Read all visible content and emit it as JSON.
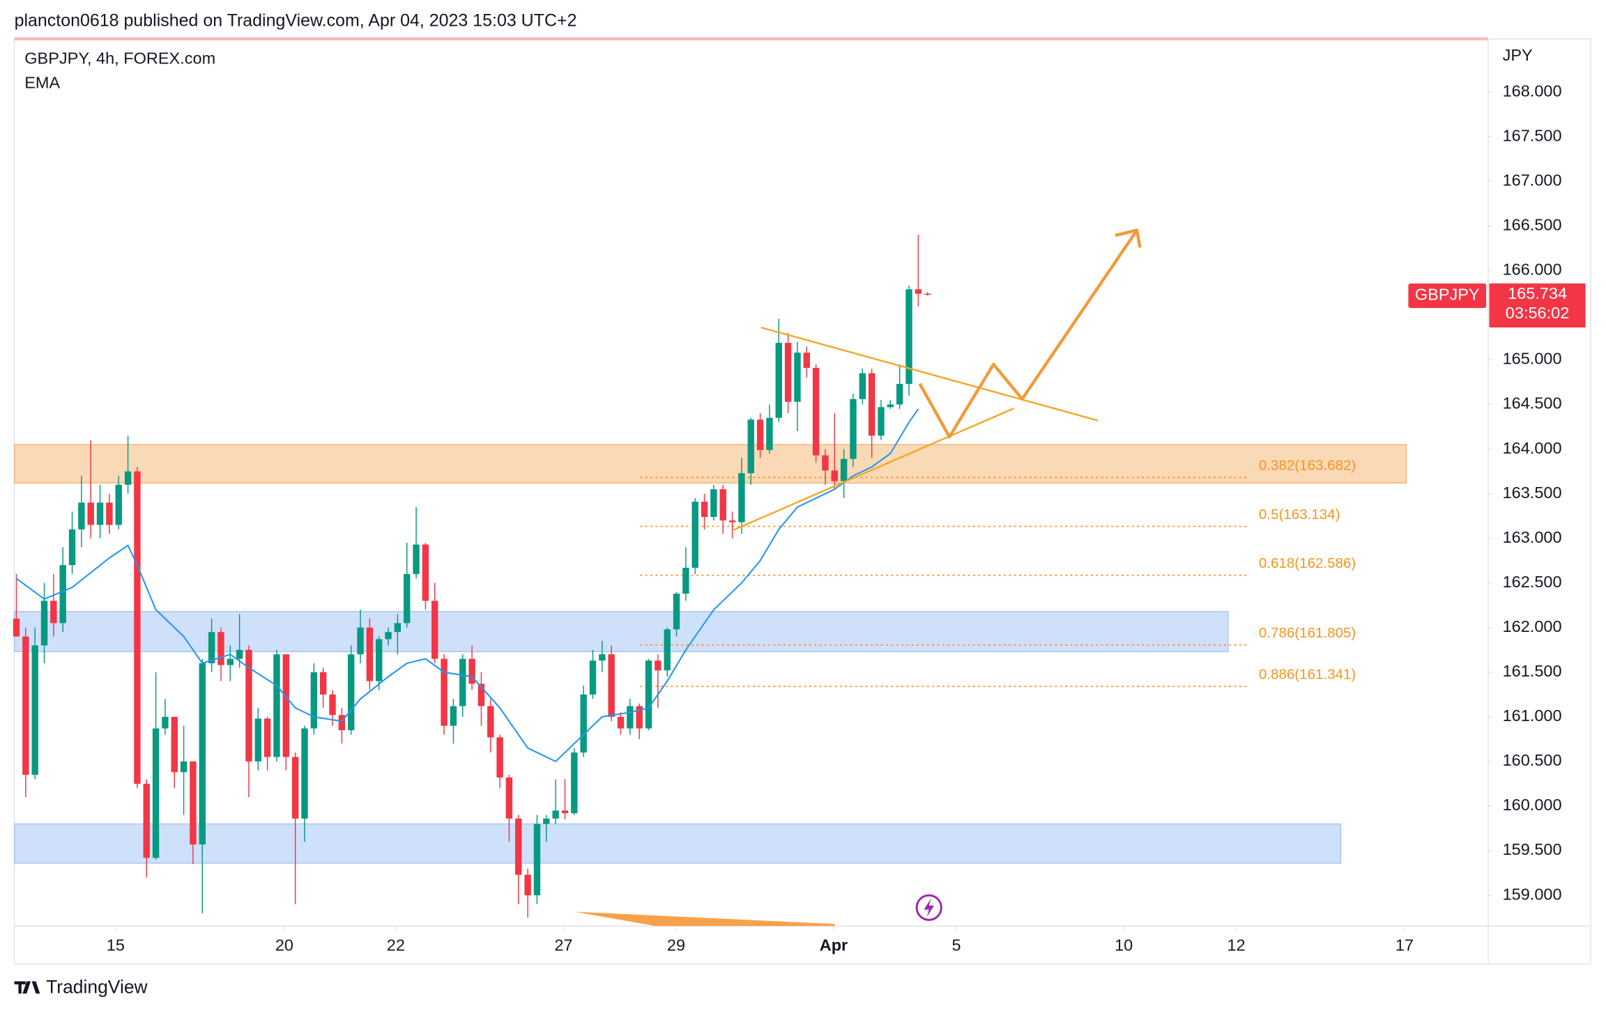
{
  "chart_data": {
    "type": "candlestick",
    "published": "plancton0618 published on TradingView.com, Apr 04, 2023 15:03 UTC+2",
    "title": "GBPJPY, 4h, FOREX.com",
    "currency": "JPY",
    "symbol": "GBPJPY",
    "last_price": 165.734,
    "countdown": "03:56:02",
    "brand": "TradingView",
    "xlim": [
      -0.22,
      158.3
    ],
    "xticks": [
      {
        "value": 10.67,
        "label": "15"
      },
      {
        "value": 28.82,
        "label": "20"
      },
      {
        "value": 40.81,
        "label": "22"
      },
      {
        "value": 58.85,
        "label": "27"
      },
      {
        "value": 70.96,
        "label": "29"
      },
      {
        "value": 87.9,
        "label": "Apr"
      },
      {
        "value": 101.1,
        "label": "5"
      },
      {
        "value": 119.1,
        "label": "10"
      },
      {
        "value": 131.2,
        "label": "12"
      },
      {
        "value": 149.3,
        "label": "17"
      }
    ],
    "ylim": [
      158.656,
      168.573
    ],
    "yticks": [
      {
        "value": 159,
        "label": "159.000"
      },
      {
        "value": 159.5,
        "label": "159.500"
      },
      {
        "value": 160,
        "label": "160.000"
      },
      {
        "value": 160.5,
        "label": "160.500"
      },
      {
        "value": 161,
        "label": "161.000"
      },
      {
        "value": 161.5,
        "label": "161.500"
      },
      {
        "value": 162,
        "label": "162.000"
      },
      {
        "value": 162.5,
        "label": "162.500"
      },
      {
        "value": 163,
        "label": "163.000"
      },
      {
        "value": 163.5,
        "label": "163.500"
      },
      {
        "value": 164,
        "label": "164.000"
      },
      {
        "value": 164.5,
        "label": "164.500"
      },
      {
        "value": 165,
        "label": "165.000"
      },
      {
        "value": 165.5,
        "label": "165.500"
      },
      {
        "value": 166,
        "label": "166.000"
      },
      {
        "value": 166.5,
        "label": "166.500"
      },
      {
        "value": 167,
        "label": "167.000"
      },
      {
        "value": 167.5,
        "label": "167.500"
      },
      {
        "value": 168,
        "label": "168.000"
      }
    ],
    "series": [
      {
        "name": "GBPJPY, 4h, FOREX.com",
        "up_color": "#089981",
        "down_color": "#f23645",
        "x": [
          0,
          1,
          2,
          3,
          4,
          5,
          6,
          7,
          8,
          9,
          10,
          11,
          12,
          13,
          14,
          15,
          16,
          17,
          18,
          19,
          20,
          21,
          22,
          23,
          24,
          25,
          26,
          27,
          28,
          29,
          30,
          31,
          32,
          33,
          34,
          35,
          36,
          37,
          38,
          39,
          40,
          41,
          42,
          43,
          44,
          45,
          46,
          47,
          48,
          49,
          50,
          51,
          52,
          53,
          54,
          55,
          56,
          57,
          58,
          59,
          60,
          61,
          62,
          63,
          64,
          65,
          66,
          67,
          68,
          69,
          70,
          71,
          72,
          73,
          74,
          75,
          76,
          77,
          78,
          79,
          80,
          81,
          82,
          83,
          84,
          85,
          86,
          87,
          88,
          89,
          90,
          91,
          92,
          93,
          94,
          95,
          96,
          97,
          98
        ],
        "open": [
          162.1,
          161.9,
          160.35,
          161.8,
          162.3,
          162.05,
          162.7,
          163.1,
          163.4,
          163.15,
          163.4,
          163.15,
          163.6,
          163.75,
          160.25,
          159.42,
          160.87,
          161.0,
          160.38,
          160.5,
          159.57,
          161.6,
          161.95,
          161.58,
          161.65,
          161.75,
          160.5,
          160.98,
          160.55,
          161.7,
          160.55,
          159.86,
          160.87,
          161.5,
          161.25,
          161.02,
          160.85,
          161.7,
          162.0,
          161.4,
          161.87,
          161.95,
          162.05,
          162.6,
          162.93,
          162.3,
          161.65,
          160.9,
          161.12,
          161.65,
          161.37,
          161.12,
          160.77,
          160.32,
          159.86,
          159.23,
          159.0,
          159.8,
          159.86,
          159.95,
          159.92,
          160.6,
          161.25,
          161.63,
          161.7,
          161.0,
          160.87,
          161.12,
          160.87,
          161.63,
          161.52,
          161.98,
          162.38,
          162.67,
          163.41,
          163.24,
          163.55,
          163.2,
          163.18,
          163.73,
          164.33,
          163.99,
          164.35,
          165.19,
          164.53,
          165.08,
          164.91,
          163.93,
          163.76,
          163.64,
          163.89,
          164.56,
          164.85,
          164.15,
          164.47,
          164.5,
          164.73,
          165.79,
          165.74
        ],
        "high": [
          162.6,
          162.0,
          162.0,
          162.5,
          162.6,
          162.9,
          163.3,
          163.7,
          164.1,
          163.6,
          163.5,
          163.7,
          164.15,
          163.8,
          160.3,
          161.5,
          161.2,
          161.0,
          160.9,
          160.5,
          161.65,
          162.1,
          162.0,
          161.8,
          162.15,
          161.8,
          161.1,
          161.0,
          161.75,
          161.7,
          160.6,
          160.9,
          161.6,
          161.55,
          161.3,
          161.1,
          161.8,
          162.2,
          162.1,
          161.9,
          162.0,
          162.15,
          162.95,
          163.35,
          162.95,
          162.5,
          161.7,
          161.2,
          161.7,
          161.8,
          161.5,
          161.2,
          160.8,
          160.35,
          159.9,
          159.3,
          159.9,
          159.9,
          160.3,
          160.3,
          160.65,
          161.35,
          161.75,
          161.85,
          161.8,
          161.05,
          161.2,
          161.15,
          161.65,
          161.7,
          162.0,
          162.4,
          162.9,
          163.45,
          163.5,
          163.6,
          163.6,
          163.3,
          163.9,
          164.35,
          164.4,
          164.5,
          165.46,
          165.3,
          165.2,
          165.15,
          164.95,
          164.0,
          164.4,
          164.0,
          164.62,
          164.9,
          164.9,
          164.55,
          164.55,
          164.95,
          165.83,
          166.4,
          165.76
        ],
        "low": [
          161.9,
          160.1,
          160.3,
          161.6,
          161.9,
          161.95,
          162.6,
          162.9,
          163.0,
          163.0,
          163.05,
          163.1,
          163.5,
          160.2,
          159.2,
          159.4,
          160.8,
          160.2,
          159.9,
          159.35,
          158.8,
          161.5,
          161.4,
          161.4,
          161.55,
          160.1,
          160.4,
          160.4,
          160.5,
          160.4,
          158.9,
          159.6,
          160.8,
          161.1,
          160.9,
          160.7,
          160.8,
          161.6,
          161.3,
          161.3,
          161.8,
          161.7,
          162.0,
          162.55,
          162.2,
          161.6,
          160.8,
          160.7,
          161.0,
          161.3,
          160.9,
          160.6,
          160.2,
          159.6,
          158.9,
          158.75,
          158.9,
          159.6,
          159.8,
          159.85,
          159.9,
          160.55,
          161.2,
          161.5,
          160.95,
          160.8,
          160.8,
          160.75,
          160.85,
          161.1,
          161.45,
          161.9,
          162.3,
          162.6,
          163.1,
          163.2,
          163.05,
          163.0,
          163.05,
          163.6,
          163.9,
          163.95,
          164.3,
          164.4,
          164.2,
          164.8,
          163.85,
          163.6,
          163.55,
          163.45,
          163.8,
          164.5,
          163.9,
          164.1,
          164.45,
          164.45,
          164.6,
          165.6,
          165.72
        ],
        "close": [
          161.9,
          160.35,
          161.8,
          162.3,
          162.05,
          162.7,
          163.1,
          163.4,
          163.15,
          163.4,
          163.15,
          163.6,
          163.75,
          160.25,
          159.42,
          160.87,
          161.0,
          160.38,
          160.5,
          159.57,
          161.6,
          161.95,
          161.58,
          161.65,
          161.75,
          160.5,
          160.98,
          160.55,
          161.7,
          160.55,
          159.86,
          160.87,
          161.5,
          161.25,
          161.02,
          160.85,
          161.7,
          162.0,
          161.4,
          161.87,
          161.95,
          162.05,
          162.6,
          162.93,
          162.3,
          161.65,
          160.9,
          161.12,
          161.65,
          161.37,
          161.12,
          160.77,
          160.32,
          159.86,
          159.23,
          159.0,
          159.8,
          159.86,
          159.95,
          159.92,
          160.6,
          161.25,
          161.63,
          161.7,
          161.0,
          160.87,
          161.12,
          160.87,
          161.63,
          161.52,
          161.98,
          162.38,
          162.67,
          163.41,
          163.24,
          163.55,
          163.2,
          163.18,
          163.73,
          164.33,
          163.99,
          164.35,
          165.19,
          164.53,
          165.08,
          164.91,
          163.93,
          163.76,
          163.64,
          163.89,
          164.56,
          164.85,
          164.15,
          164.47,
          164.5,
          164.73,
          165.79,
          165.74,
          165.734
        ]
      },
      {
        "name": "EMA",
        "color": "#2196f3",
        "x": [
          0,
          3,
          6,
          10,
          12,
          13,
          15,
          18,
          20,
          23,
          25,
          28,
          30,
          32,
          35,
          37,
          40,
          42,
          44,
          46,
          49,
          52,
          55,
          58,
          60,
          63,
          66,
          68,
          70,
          72,
          75,
          78,
          80,
          82,
          84,
          86,
          88,
          90,
          92,
          94,
          96,
          97
        ],
        "values": [
          162.55,
          162.32,
          162.45,
          162.78,
          162.92,
          162.7,
          162.2,
          161.9,
          161.6,
          161.7,
          161.55,
          161.35,
          161.1,
          161.0,
          160.95,
          161.2,
          161.45,
          161.6,
          161.65,
          161.5,
          161.45,
          161.1,
          160.65,
          160.5,
          160.7,
          161.0,
          161.05,
          161.1,
          161.4,
          161.75,
          162.2,
          162.5,
          162.75,
          163.1,
          163.35,
          163.45,
          163.55,
          163.7,
          163.8,
          163.95,
          164.3,
          164.45
        ]
      }
    ],
    "zones": [
      {
        "ylim": [
          163.62,
          164.05
        ],
        "color": "#fad9b6",
        "edge": "#f5b57a"
      },
      {
        "ylim": [
          161.73,
          162.18
        ],
        "color": "#cfe0fb",
        "edge": "#a9c6f5"
      },
      {
        "ylim": [
          159.36,
          159.8
        ],
        "color": "#cfe0fb",
        "edge": "#a9c6f5"
      }
    ],
    "fib_color": "#f7941d",
    "fib_levels": [
      {
        "value": 163.682,
        "label": "0.382(163.682)"
      },
      {
        "value": 163.134,
        "label": "0.5(163.134)"
      },
      {
        "value": 162.586,
        "label": "0.618(162.586)"
      },
      {
        "value": 161.805,
        "label": "0.786(161.805)"
      },
      {
        "value": 161.341,
        "label": "0.886(161.341)"
      }
    ]
  }
}
